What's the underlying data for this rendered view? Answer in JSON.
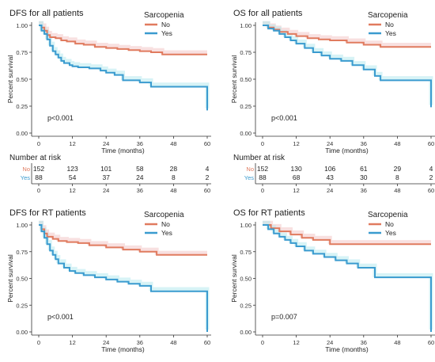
{
  "colors": {
    "no": "#e07b5f",
    "yes": "#3a9bcf",
    "ci_no": "#f3c6c6",
    "ci_yes": "#b7e9ef",
    "axis": "#333333"
  },
  "chart_data": [
    {
      "type": "line",
      "subtype": "kaplan-meier",
      "title": "DFS for all patients",
      "ylabel": "Percent survival",
      "xlabel": "Time (months)",
      "legend_title": "Sarcopenia",
      "legend_position": "top-right",
      "xlim": [
        0,
        60
      ],
      "ylim": [
        0,
        1
      ],
      "xticks": [
        "0",
        "12",
        "24",
        "36",
        "48",
        "60"
      ],
      "yticks": [
        "0.00",
        "0.25",
        "0.50",
        "0.75",
        "1.00"
      ],
      "pvalue": "p<0.001",
      "series": [
        {
          "name": "No",
          "color": "no",
          "x": [
            0,
            1,
            2,
            3,
            4,
            6,
            8,
            10,
            13,
            16,
            20,
            24,
            28,
            32,
            36,
            40,
            44,
            60
          ],
          "y": [
            1.0,
            0.98,
            0.95,
            0.91,
            0.89,
            0.88,
            0.86,
            0.85,
            0.83,
            0.82,
            0.8,
            0.79,
            0.78,
            0.77,
            0.76,
            0.75,
            0.73,
            0.73
          ]
        },
        {
          "name": "Yes",
          "color": "yes",
          "x": [
            0,
            1,
            2,
            3,
            4,
            5,
            6,
            7,
            8,
            9,
            11,
            12,
            14,
            18,
            22,
            24,
            27,
            30,
            36,
            40,
            60,
            60
          ],
          "y": [
            1.0,
            0.95,
            0.92,
            0.87,
            0.81,
            0.76,
            0.73,
            0.7,
            0.67,
            0.65,
            0.63,
            0.62,
            0.61,
            0.6,
            0.58,
            0.56,
            0.54,
            0.49,
            0.47,
            0.43,
            0.43,
            0.21
          ]
        }
      ],
      "risk_table": {
        "title": "Number at risk",
        "groups": [
          {
            "label": "No",
            "color": "no",
            "counts": [
              "152",
              "123",
              "101",
              "58",
              "28",
              "4"
            ]
          },
          {
            "label": "Yes",
            "color": "yes",
            "counts": [
              "88",
              "54",
              "37",
              "24",
              "8",
              "2"
            ]
          }
        ]
      }
    },
    {
      "type": "line",
      "subtype": "kaplan-meier",
      "title": "OS for all patients",
      "ylabel": "Percent survival",
      "xlabel": "Time (months)",
      "legend_title": "Sarcopenia",
      "legend_position": "top-right",
      "xlim": [
        0,
        60
      ],
      "ylim": [
        0,
        1
      ],
      "xticks": [
        "0",
        "12",
        "24",
        "36",
        "48",
        "60"
      ],
      "yticks": [
        "0.00",
        "0.25",
        "0.50",
        "0.75",
        "1.00"
      ],
      "pvalue": "p<0.001",
      "series": [
        {
          "name": "No",
          "color": "no",
          "x": [
            0,
            2,
            4,
            6,
            9,
            12,
            16,
            20,
            24,
            30,
            36,
            42,
            60
          ],
          "y": [
            1.0,
            0.98,
            0.96,
            0.94,
            0.92,
            0.9,
            0.88,
            0.87,
            0.86,
            0.84,
            0.82,
            0.8,
            0.8
          ]
        },
        {
          "name": "Yes",
          "color": "yes",
          "x": [
            0,
            2,
            4,
            6,
            8,
            10,
            12,
            15,
            18,
            21,
            24,
            28,
            32,
            36,
            40,
            42,
            60,
            60
          ],
          "y": [
            1.0,
            0.97,
            0.95,
            0.92,
            0.89,
            0.86,
            0.83,
            0.79,
            0.75,
            0.72,
            0.69,
            0.67,
            0.63,
            0.59,
            0.53,
            0.49,
            0.49,
            0.24
          ]
        }
      ],
      "risk_table": {
        "title": "Number at risk",
        "groups": [
          {
            "label": "No",
            "color": "no",
            "counts": [
              "152",
              "130",
              "106",
              "61",
              "29",
              "4"
            ]
          },
          {
            "label": "Yes",
            "color": "yes",
            "counts": [
              "88",
              "68",
              "43",
              "30",
              "8",
              "2"
            ]
          }
        ]
      }
    },
    {
      "type": "line",
      "subtype": "kaplan-meier",
      "title": "DFS for RT patients",
      "ylabel": "Percent survival",
      "xlabel": "Time (months)",
      "legend_title": "Sarcopenia",
      "legend_position": "top-right",
      "xlim": [
        0,
        60
      ],
      "ylim": [
        0,
        1
      ],
      "xticks": [
        "0",
        "12",
        "24",
        "36",
        "48",
        "60"
      ],
      "yticks": [
        "0.00",
        "0.25",
        "0.50",
        "0.75",
        "1.00"
      ],
      "pvalue": "p<0.001",
      "series": [
        {
          "name": "No",
          "color": "no",
          "x": [
            0,
            1,
            2,
            3,
            5,
            7,
            10,
            14,
            18,
            24,
            30,
            36,
            42,
            60
          ],
          "y": [
            1.0,
            0.96,
            0.92,
            0.89,
            0.87,
            0.85,
            0.84,
            0.83,
            0.81,
            0.79,
            0.77,
            0.75,
            0.72,
            0.72
          ]
        },
        {
          "name": "Yes",
          "color": "yes",
          "x": [
            0,
            1,
            2,
            3,
            4,
            5,
            6,
            7,
            9,
            11,
            13,
            16,
            20,
            24,
            28,
            32,
            36,
            40,
            60,
            60
          ],
          "y": [
            1.0,
            0.94,
            0.88,
            0.82,
            0.76,
            0.72,
            0.68,
            0.64,
            0.6,
            0.57,
            0.55,
            0.53,
            0.51,
            0.49,
            0.47,
            0.45,
            0.43,
            0.38,
            0.38,
            0.0
          ]
        }
      ]
    },
    {
      "type": "line",
      "subtype": "kaplan-meier",
      "title": "OS for RT patients",
      "ylabel": "Percent survival",
      "xlabel": "Time (months)",
      "legend_title": "Sarcopenia",
      "legend_position": "top-right",
      "xlim": [
        0,
        60
      ],
      "ylim": [
        0,
        1
      ],
      "xticks": [
        "0",
        "12",
        "24",
        "36",
        "48",
        "60"
      ],
      "yticks": [
        "0.00",
        "0.25",
        "0.50",
        "0.75",
        "1.00"
      ],
      "pvalue": "p=0.007",
      "series": [
        {
          "name": "No",
          "color": "no",
          "x": [
            0,
            3,
            6,
            10,
            14,
            18,
            24,
            60
          ],
          "y": [
            1.0,
            0.97,
            0.94,
            0.91,
            0.88,
            0.86,
            0.82,
            0.82
          ]
        },
        {
          "name": "Yes",
          "color": "yes",
          "x": [
            0,
            2,
            4,
            6,
            8,
            10,
            12,
            15,
            18,
            22,
            26,
            30,
            34,
            40,
            60,
            60
          ],
          "y": [
            1.0,
            0.96,
            0.92,
            0.89,
            0.86,
            0.83,
            0.8,
            0.76,
            0.73,
            0.7,
            0.67,
            0.64,
            0.6,
            0.51,
            0.51,
            0.0
          ]
        }
      ]
    }
  ]
}
